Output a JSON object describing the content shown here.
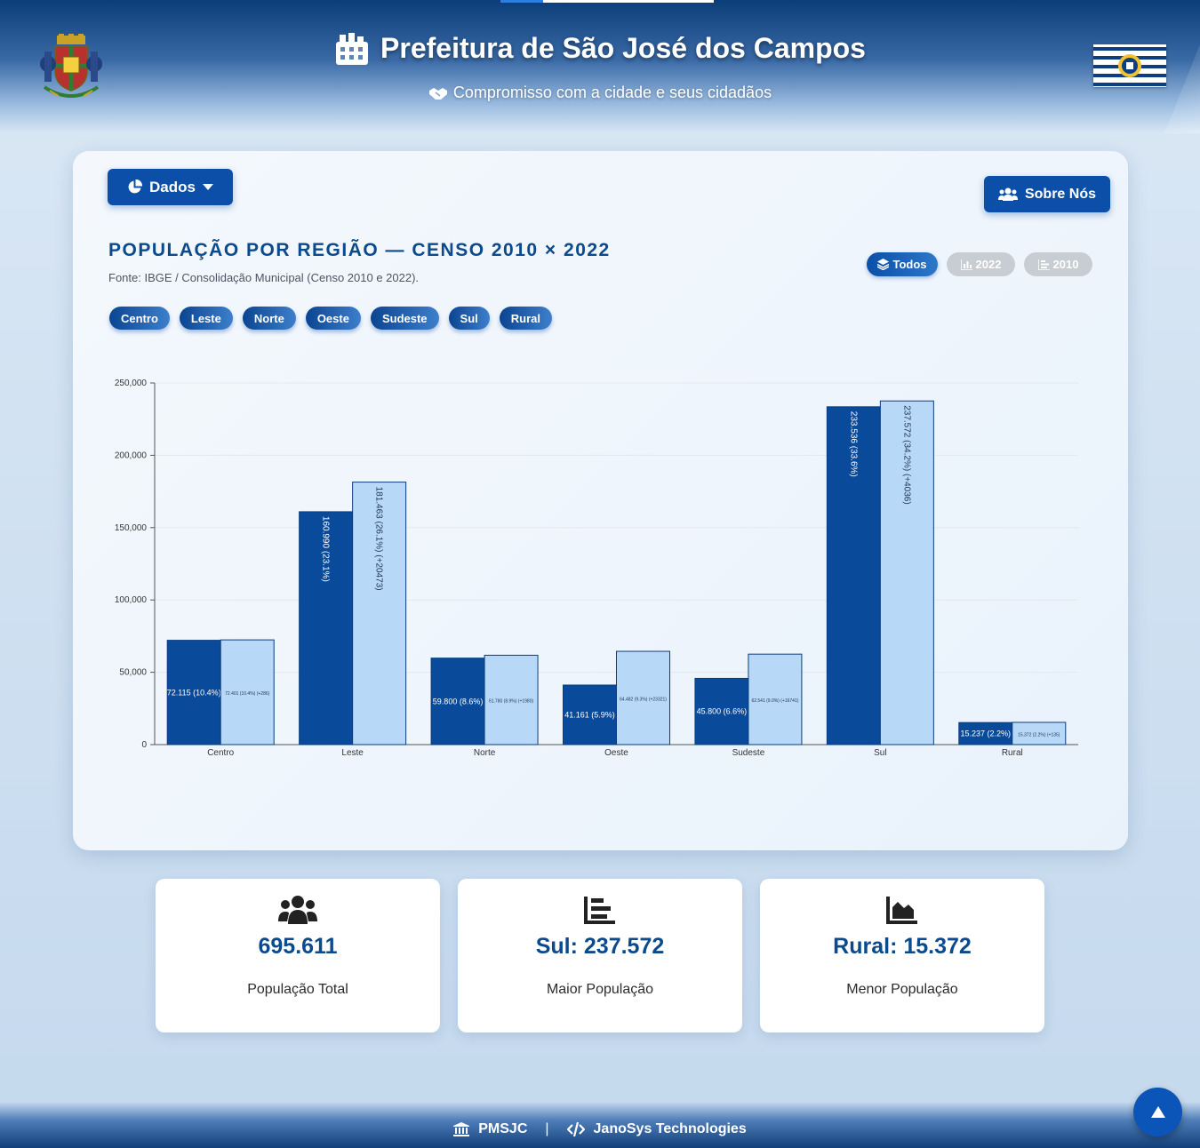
{
  "header": {
    "title": "Prefeitura de São José dos Campos",
    "subtitle": "Compromisso com a cidade e seus cidadãos"
  },
  "toolbar": {
    "dados_label": "Dados",
    "sobre_label": "Sobre Nós"
  },
  "chart_panel": {
    "title": "POPULAÇÃO POR REGIÃO — CENSO 2010 × 2022",
    "source": "Fonte: IBGE / Consolidação Municipal (Censo 2010 e 2022).",
    "view_toggles": [
      {
        "label": "Todos",
        "icon": "layers-icon",
        "active": true
      },
      {
        "label": "2022",
        "icon": "bar-chart-icon",
        "active": false
      },
      {
        "label": "2010",
        "icon": "chart-bars-left-icon",
        "active": false
      }
    ],
    "region_filters": [
      "Centro",
      "Leste",
      "Norte",
      "Oeste",
      "Sudeste",
      "Sul",
      "Rural"
    ]
  },
  "chart_data": {
    "type": "bar",
    "categories": [
      "Centro",
      "Leste",
      "Norte",
      "Oeste",
      "Sudeste",
      "Sul",
      "Rural"
    ],
    "series": [
      {
        "values": [
          72115,
          160990,
          59800,
          41161,
          45800,
          233536,
          15237
        ],
        "labels": [
          "72.115 (10.4%)",
          "160.990 (23.1%)",
          "59.800 (8.6%)",
          "41.161 (5.9%)",
          "45.800 (6.6%)",
          "233.536 (33.6%)",
          "15.237 (2.2%)"
        ],
        "color": "#0a4a9a"
      },
      {
        "values": [
          72401,
          181463,
          61780,
          64482,
          62541,
          237572,
          15372
        ],
        "labels": [
          "72.401 (10.4%) (+286)",
          "181.463 (26.1%) (+20473)",
          "61.780 (8.9%) (+1980)",
          "64.482 (9.3%) (+23321)",
          "62.541 (9.0%) (+16741)",
          "237.572 (34.2%) (+4036)",
          "15.372 (2.2%) (+135)"
        ],
        "color": "#b8d8f8"
      }
    ],
    "ylim": [
      0,
      250000
    ],
    "yticks": [
      "0",
      "50,000",
      "100,000",
      "150,000",
      "200,000",
      "250,000"
    ],
    "grid": true,
    "xlabel": "",
    "ylabel": ""
  },
  "stats": [
    {
      "icon": "users-icon",
      "value": "695.611",
      "label": "População Total"
    },
    {
      "icon": "chart-bars-left-icon",
      "value": "Sul: 237.572",
      "label": "Maior População"
    },
    {
      "icon": "area-chart-icon",
      "value": "Rural: 15.372",
      "label": "Menor População"
    }
  ],
  "footer": {
    "left": "PMSJC",
    "separator": "|",
    "right": "JanoSys Technologies"
  },
  "colors": {
    "primary": "#0b4fa8",
    "title": "#0c4a8c",
    "bar_2010": "#0a4a9a",
    "bar_2022": "#b8d8f8"
  }
}
